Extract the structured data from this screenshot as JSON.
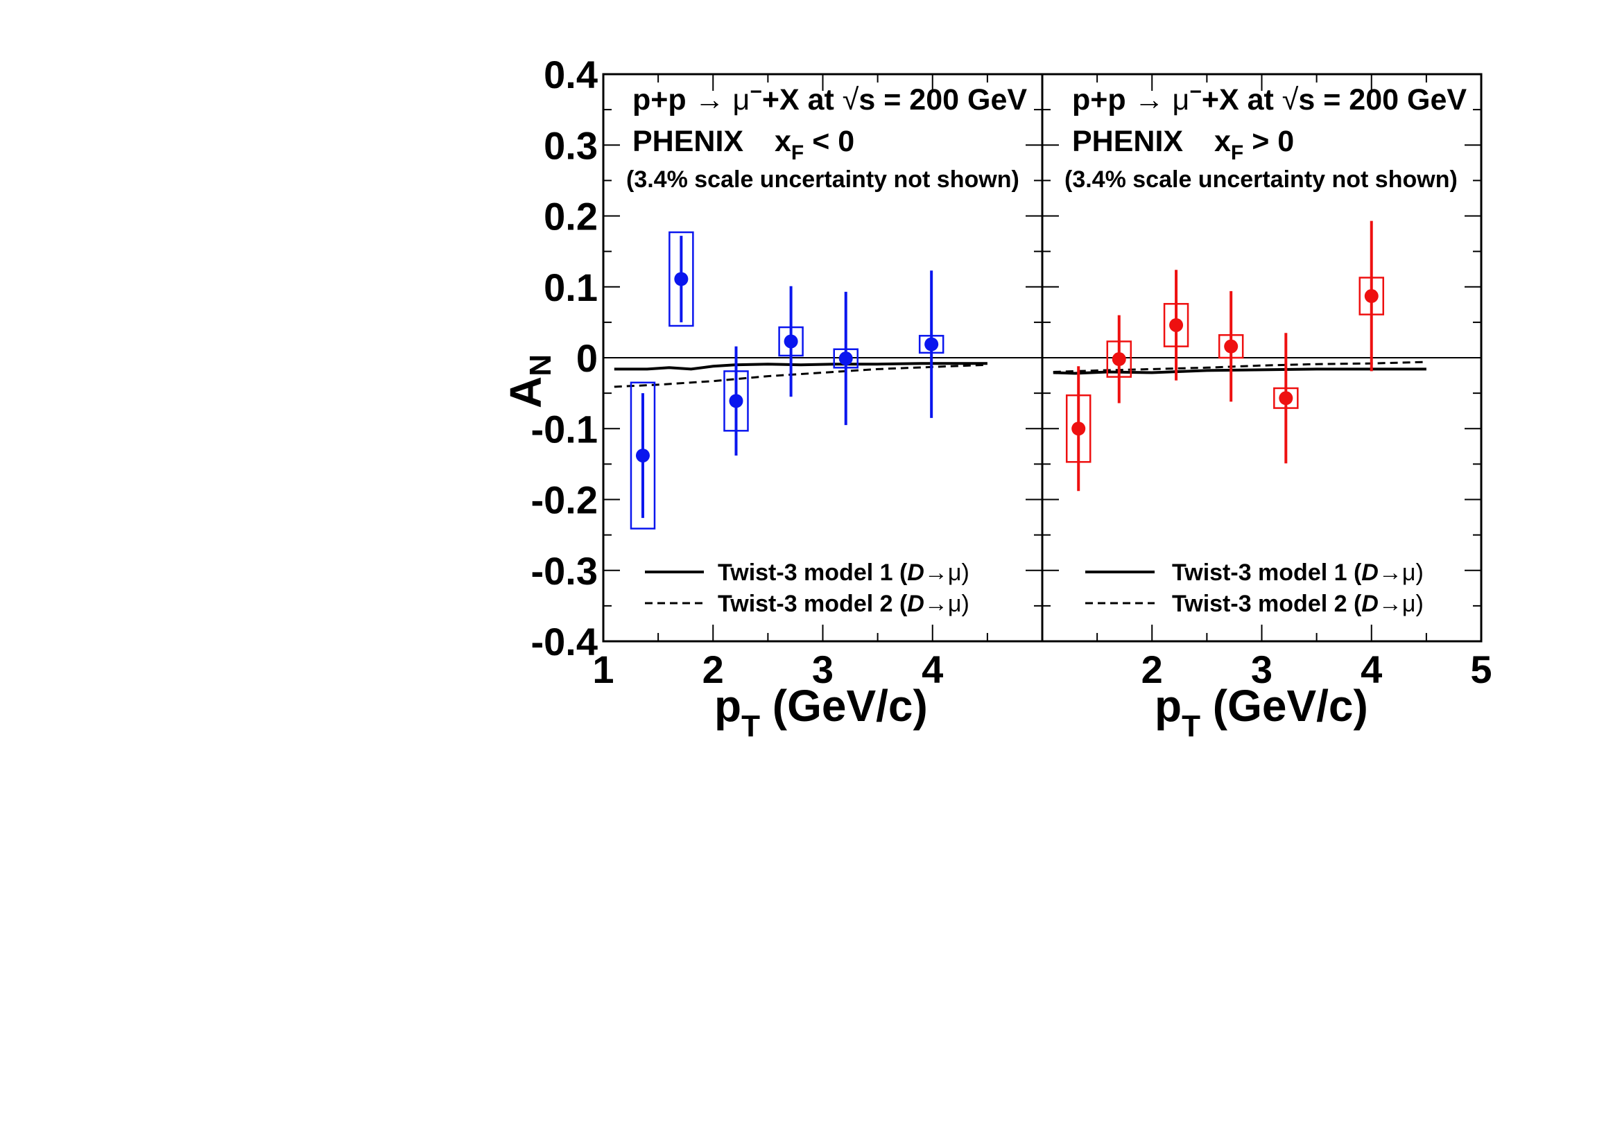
{
  "y_axis_label": "A",
  "y_axis_sub": "N",
  "colors": {
    "left": "#0a16ee",
    "right": "#ee1010",
    "line": "#000000"
  },
  "chart_data": [
    {
      "type": "scatter",
      "panel": "left",
      "title_line1_a": "p+p ",
      "title_arrow": "→",
      "title_mu": " μ",
      "title_sup": "−",
      "title_line1_b": "+X at ",
      "title_sqrt": "√",
      "title_line1_c": "s = 200 GeV",
      "phenix": "PHENIX",
      "xf_x": "x",
      "xf_sub": "F",
      "xf_cond": " < 0",
      "note": "(3.4% scale uncertainty not shown)",
      "xlabel": "p",
      "xlabel_sub": "T",
      "xlabel_unit": " (GeV/c)",
      "xlim": [
        1,
        5
      ],
      "ylim": [
        -0.4,
        0.4
      ],
      "x_ticks": [
        "1",
        "2",
        "3",
        "4"
      ],
      "y_ticks": [
        "0.4",
        "0.3",
        "0.2",
        "0.1",
        "0",
        "-0.1",
        "-0.2",
        "-0.3",
        "-0.4"
      ],
      "points": [
        {
          "x": 1.36,
          "y": -0.138,
          "err": 0.088,
          "sys": 0.103
        },
        {
          "x": 1.71,
          "y": 0.111,
          "err": 0.061,
          "sys": 0.066
        },
        {
          "x": 2.21,
          "y": -0.061,
          "err": 0.077,
          "sys": 0.042
        },
        {
          "x": 2.71,
          "y": 0.023,
          "err": 0.078,
          "sys": 0.02
        },
        {
          "x": 3.21,
          "y": -0.001,
          "err": 0.094,
          "sys": 0.013
        },
        {
          "x": 3.99,
          "y": 0.019,
          "err": 0.104,
          "sys": 0.012
        }
      ],
      "model1": [
        [
          1.1,
          -0.016
        ],
        [
          1.4,
          -0.016
        ],
        [
          1.6,
          -0.014
        ],
        [
          1.8,
          -0.016
        ],
        [
          2.0,
          -0.012
        ],
        [
          2.2,
          -0.01
        ],
        [
          2.5,
          -0.009
        ],
        [
          2.8,
          -0.01
        ],
        [
          3.1,
          -0.009
        ],
        [
          3.5,
          -0.009
        ],
        [
          3.9,
          -0.008
        ],
        [
          4.2,
          -0.008
        ],
        [
          4.5,
          -0.008
        ]
      ],
      "model2": [
        [
          1.1,
          -0.041
        ],
        [
          1.5,
          -0.038
        ],
        [
          2.0,
          -0.033
        ],
        [
          2.5,
          -0.026
        ],
        [
          3.0,
          -0.021
        ],
        [
          3.5,
          -0.016
        ],
        [
          4.0,
          -0.013
        ],
        [
          4.5,
          -0.01
        ]
      ],
      "legend": [
        {
          "pre": "Twist-3 model 1 (",
          "d": "D",
          "arrow": "→",
          "mu": "μ",
          "post": ")",
          "style": "solid"
        },
        {
          "pre": "Twist-3 model 2 (",
          "d": "D",
          "arrow": "→",
          "mu": "μ",
          "post": ")",
          "style": "dashed"
        }
      ]
    },
    {
      "type": "scatter",
      "panel": "right",
      "title_line1_a": "p+p ",
      "title_arrow": "→",
      "title_mu": " μ",
      "title_sup": "−",
      "title_line1_b": "+X at ",
      "title_sqrt": "√",
      "title_line1_c": "s = 200 GeV",
      "phenix": "PHENIX",
      "xf_x": "x",
      "xf_sub": "F",
      "xf_cond": " > 0",
      "note": "(3.4% scale uncertainty not shown)",
      "xlabel": "p",
      "xlabel_sub": "T",
      "xlabel_unit": " (GeV/c)",
      "xlim": [
        1,
        5
      ],
      "ylim": [
        -0.4,
        0.4
      ],
      "x_ticks": [
        "2",
        "3",
        "4",
        "5"
      ],
      "points": [
        {
          "x": 1.33,
          "y": -0.1,
          "err": 0.088,
          "sys": 0.047
        },
        {
          "x": 1.7,
          "y": -0.002,
          "err": 0.062,
          "sys": 0.025
        },
        {
          "x": 2.22,
          "y": 0.046,
          "err": 0.078,
          "sys": 0.03
        },
        {
          "x": 2.72,
          "y": 0.016,
          "err": 0.078,
          "sys": 0.016
        },
        {
          "x": 3.22,
          "y": -0.057,
          "err": 0.092,
          "sys": 0.014
        },
        {
          "x": 4.0,
          "y": 0.087,
          "err": 0.106,
          "sys": 0.026
        }
      ],
      "model1": [
        [
          1.1,
          -0.021
        ],
        [
          1.3,
          -0.022
        ],
        [
          1.6,
          -0.02
        ],
        [
          2.0,
          -0.021
        ],
        [
          2.5,
          -0.018
        ],
        [
          3.0,
          -0.017
        ],
        [
          3.5,
          -0.016
        ],
        [
          4.0,
          -0.016
        ],
        [
          4.5,
          -0.016
        ]
      ],
      "model2": [
        [
          1.1,
          -0.02
        ],
        [
          1.5,
          -0.018
        ],
        [
          2.0,
          -0.016
        ],
        [
          2.5,
          -0.014
        ],
        [
          3.0,
          -0.011
        ],
        [
          3.5,
          -0.009
        ],
        [
          4.0,
          -0.008
        ],
        [
          4.5,
          -0.006
        ]
      ],
      "legend": [
        {
          "pre": "Twist-3 model 1 (",
          "d": "D",
          "arrow": "→",
          "mu": "μ",
          "post": ")",
          "style": "solid"
        },
        {
          "pre": "Twist-3 model 2 (",
          "d": "D",
          "arrow": "→",
          "mu": "μ",
          "post": ")",
          "style": "dashed"
        }
      ]
    }
  ]
}
